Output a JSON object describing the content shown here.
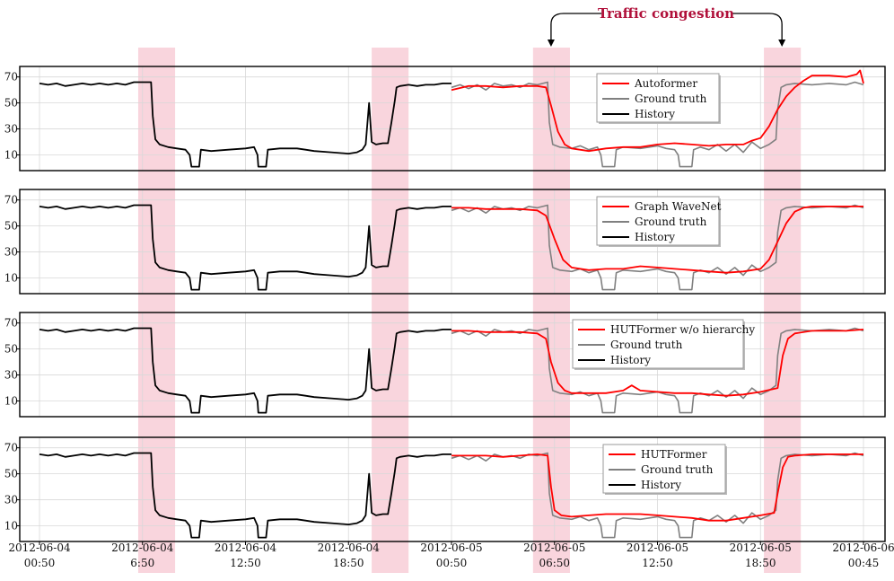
{
  "chart_data": {
    "type": "line",
    "annotation": {
      "text": "Traffic congestion",
      "color": "#b0103a"
    },
    "x_tick_labels": [
      [
        "2012-06-04",
        "00:50"
      ],
      [
        "2012-06-04",
        "6:50"
      ],
      [
        "2012-06-04",
        "12:50"
      ],
      [
        "2012-06-04",
        "18:50"
      ],
      [
        "2012-06-05",
        "00:50"
      ],
      [
        "2012-06-05",
        "06:50"
      ],
      [
        "2012-06-05",
        "12:50"
      ],
      [
        "2012-06-05",
        "18:50"
      ],
      [
        "2012-06-06",
        "00:45"
      ]
    ],
    "y_ticks": [
      10,
      30,
      50,
      70
    ],
    "ylim": [
      0,
      76
    ],
    "grid": true,
    "legend_position": "upper-right-of-center",
    "colors": {
      "prediction": "#ff0000",
      "ground_truth": "#808080",
      "history": "#000000",
      "highlight": "#f9d5dd"
    },
    "highlight_bands": [
      [
        5.75,
        7.9
      ],
      [
        19.35,
        21.5
      ],
      [
        28.75,
        30.9
      ],
      [
        42.2,
        44.35
      ]
    ],
    "history_x_range": [
      0,
      24
    ],
    "forecast_x_range": [
      24,
      48
    ],
    "history": [
      [
        0,
        65
      ],
      [
        0.5,
        64
      ],
      [
        1,
        65
      ],
      [
        1.5,
        63
      ],
      [
        2,
        64
      ],
      [
        2.5,
        65
      ],
      [
        3,
        64
      ],
      [
        3.5,
        65
      ],
      [
        4,
        64
      ],
      [
        4.5,
        65
      ],
      [
        5,
        64
      ],
      [
        5.5,
        66
      ],
      [
        6,
        66
      ],
      [
        6.5,
        66
      ],
      [
        6.6,
        40
      ],
      [
        6.75,
        22
      ],
      [
        7.0,
        18
      ],
      [
        7.5,
        16
      ],
      [
        8.0,
        15
      ],
      [
        8.5,
        14
      ],
      [
        8.75,
        10
      ],
      [
        8.85,
        1
      ],
      [
        9.3,
        1
      ],
      [
        9.4,
        14
      ],
      [
        10,
        13
      ],
      [
        11,
        14
      ],
      [
        12,
        15
      ],
      [
        12.5,
        16
      ],
      [
        12.7,
        10
      ],
      [
        12.75,
        1
      ],
      [
        13.2,
        1
      ],
      [
        13.3,
        14
      ],
      [
        14,
        15
      ],
      [
        15,
        15
      ],
      [
        15.5,
        14
      ],
      [
        16,
        13
      ],
      [
        17,
        12
      ],
      [
        18,
        11
      ],
      [
        18.5,
        12
      ],
      [
        18.8,
        14
      ],
      [
        19.0,
        18
      ],
      [
        19.2,
        50
      ],
      [
        19.35,
        20
      ],
      [
        19.6,
        18
      ],
      [
        20.0,
        19
      ],
      [
        20.3,
        19
      ],
      [
        20.5,
        35
      ],
      [
        20.7,
        52
      ],
      [
        20.8,
        62
      ],
      [
        21.0,
        63
      ],
      [
        21.5,
        64
      ],
      [
        22,
        63
      ],
      [
        22.5,
        64
      ],
      [
        23,
        64
      ],
      [
        23.5,
        65
      ],
      [
        24,
        65
      ]
    ],
    "series": [
      {
        "legend": [
          "Autoformer",
          "Ground truth",
          "History"
        ],
        "prediction": [
          [
            24,
            60
          ],
          [
            25,
            63
          ],
          [
            26,
            63
          ],
          [
            27,
            62
          ],
          [
            28,
            63
          ],
          [
            29,
            63
          ],
          [
            29.5,
            62
          ],
          [
            29.8,
            48
          ],
          [
            30.2,
            28
          ],
          [
            30.6,
            18
          ],
          [
            31,
            15
          ],
          [
            32,
            13
          ],
          [
            33,
            15
          ],
          [
            34,
            16
          ],
          [
            35,
            16
          ],
          [
            36,
            18
          ],
          [
            37,
            19
          ],
          [
            38,
            18
          ],
          [
            39,
            17
          ],
          [
            40,
            18
          ],
          [
            41,
            18
          ],
          [
            41.5,
            21
          ],
          [
            42,
            23
          ],
          [
            42.5,
            32
          ],
          [
            43,
            45
          ],
          [
            43.5,
            55
          ],
          [
            44,
            62
          ],
          [
            44.5,
            67
          ],
          [
            45,
            71
          ],
          [
            46,
            71
          ],
          [
            47,
            70
          ],
          [
            47.6,
            72
          ],
          [
            47.8,
            75
          ],
          [
            48,
            65
          ]
        ]
      },
      {
        "legend": [
          "Graph WaveNet",
          "Ground truth",
          "History"
        ],
        "prediction": [
          [
            24,
            64
          ],
          [
            25,
            64
          ],
          [
            26,
            63
          ],
          [
            27,
            63
          ],
          [
            28,
            63
          ],
          [
            29,
            62
          ],
          [
            29.5,
            58
          ],
          [
            30,
            40
          ],
          [
            30.5,
            24
          ],
          [
            31,
            18
          ],
          [
            32,
            16
          ],
          [
            33,
            17
          ],
          [
            34,
            17
          ],
          [
            35,
            19
          ],
          [
            36,
            18
          ],
          [
            37,
            17
          ],
          [
            38,
            16
          ],
          [
            39,
            15
          ],
          [
            40,
            14
          ],
          [
            41,
            15
          ],
          [
            42,
            17
          ],
          [
            42.5,
            24
          ],
          [
            43,
            38
          ],
          [
            43.5,
            52
          ],
          [
            44,
            61
          ],
          [
            44.5,
            64
          ],
          [
            45,
            65
          ],
          [
            46,
            65
          ],
          [
            47,
            65
          ],
          [
            48,
            65
          ]
        ]
      },
      {
        "legend": [
          "HUTFormer w/o hierarchy",
          "Ground truth",
          "History"
        ],
        "prediction": [
          [
            24,
            64
          ],
          [
            25,
            64
          ],
          [
            26,
            63
          ],
          [
            27,
            63
          ],
          [
            28,
            63
          ],
          [
            29,
            62
          ],
          [
            29.5,
            58
          ],
          [
            29.8,
            40
          ],
          [
            30.2,
            24
          ],
          [
            30.6,
            18
          ],
          [
            31,
            16
          ],
          [
            32,
            16
          ],
          [
            33,
            16
          ],
          [
            34,
            18
          ],
          [
            34.5,
            22
          ],
          [
            35,
            18
          ],
          [
            36,
            17
          ],
          [
            37,
            16
          ],
          [
            38,
            16
          ],
          [
            39,
            15
          ],
          [
            40,
            14
          ],
          [
            41,
            15
          ],
          [
            42,
            17
          ],
          [
            43,
            20
          ],
          [
            43.3,
            45
          ],
          [
            43.6,
            58
          ],
          [
            44,
            62
          ],
          [
            45,
            64
          ],
          [
            46,
            64
          ],
          [
            47,
            64
          ],
          [
            48,
            65
          ]
        ]
      },
      {
        "legend": [
          "HUTFormer",
          "Ground truth",
          "History"
        ],
        "prediction": [
          [
            24,
            64
          ],
          [
            25,
            64
          ],
          [
            26,
            64
          ],
          [
            27,
            63
          ],
          [
            28,
            64
          ],
          [
            29,
            65
          ],
          [
            29.6,
            64
          ],
          [
            29.8,
            40
          ],
          [
            30,
            22
          ],
          [
            30.4,
            18
          ],
          [
            31,
            17
          ],
          [
            32,
            18
          ],
          [
            33,
            19
          ],
          [
            34,
            19
          ],
          [
            35,
            19
          ],
          [
            36,
            18
          ],
          [
            37,
            17
          ],
          [
            38,
            16
          ],
          [
            39,
            14
          ],
          [
            40,
            14
          ],
          [
            41,
            16
          ],
          [
            42,
            18
          ],
          [
            42.8,
            20
          ],
          [
            43.0,
            35
          ],
          [
            43.3,
            55
          ],
          [
            43.6,
            63
          ],
          [
            44,
            64
          ],
          [
            45,
            65
          ],
          [
            46,
            65
          ],
          [
            47,
            65
          ],
          [
            48,
            65
          ]
        ]
      }
    ],
    "ground_truth": [
      [
        24,
        62
      ],
      [
        24.5,
        64
      ],
      [
        25,
        61
      ],
      [
        25.5,
        64
      ],
      [
        26,
        60
      ],
      [
        26.5,
        65
      ],
      [
        27,
        63
      ],
      [
        27.5,
        64
      ],
      [
        28,
        62
      ],
      [
        28.5,
        65
      ],
      [
        29,
        64
      ],
      [
        29.6,
        66
      ],
      [
        29.7,
        35
      ],
      [
        29.9,
        18
      ],
      [
        30.3,
        16
      ],
      [
        31,
        15
      ],
      [
        31.5,
        17
      ],
      [
        32,
        14
      ],
      [
        32.5,
        16
      ],
      [
        32.7,
        10
      ],
      [
        32.8,
        1
      ],
      [
        33.5,
        1
      ],
      [
        33.6,
        14
      ],
      [
        34,
        16
      ],
      [
        35,
        15
      ],
      [
        36,
        17
      ],
      [
        36.5,
        15
      ],
      [
        37,
        14
      ],
      [
        37.2,
        10
      ],
      [
        37.3,
        1
      ],
      [
        38.0,
        1
      ],
      [
        38.1,
        14
      ],
      [
        38.5,
        16
      ],
      [
        39,
        14
      ],
      [
        39.5,
        18
      ],
      [
        40,
        13
      ],
      [
        40.5,
        18
      ],
      [
        41,
        12
      ],
      [
        41.5,
        20
      ],
      [
        42,
        15
      ],
      [
        42.5,
        18
      ],
      [
        42.9,
        22
      ],
      [
        43.0,
        45
      ],
      [
        43.2,
        62
      ],
      [
        43.5,
        64
      ],
      [
        44,
        65
      ],
      [
        45,
        64
      ],
      [
        46,
        65
      ],
      [
        47,
        64
      ],
      [
        47.5,
        66
      ],
      [
        48,
        64
      ]
    ]
  }
}
